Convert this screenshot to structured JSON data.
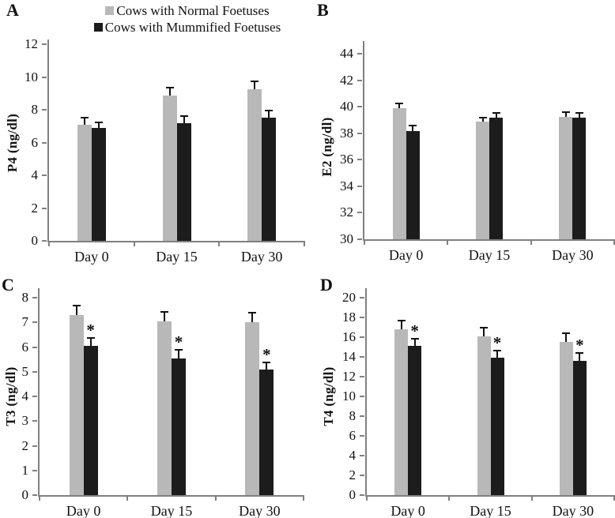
{
  "figure": {
    "sig_marker": "*",
    "colors": {
      "normal": "#b8b8b8",
      "mummified": "#1c1c1c",
      "axis": "#808080",
      "text": "#111111"
    },
    "legend": {
      "items": [
        {
          "label": "Cows with Normal Foetuses",
          "color": "#b8b8b8"
        },
        {
          "label": "Cows with Mummified Foetuses",
          "color": "#1c1c1c"
        }
      ]
    }
  },
  "chart_data": [
    {
      "panel": "A",
      "type": "bar",
      "ylabel": "P4 (ng/dl)",
      "xlabel": "",
      "categories": [
        "Day 0",
        "Day 15",
        "Day 30"
      ],
      "ylim": [
        0,
        12
      ],
      "yticks": [
        0,
        2,
        4,
        6,
        8,
        10,
        12
      ],
      "grid": false,
      "legend_position": "top",
      "series": [
        {
          "name": "Cows with Normal Foetuses",
          "color": "#b8b8b8",
          "values": [
            7.1,
            8.85,
            9.25
          ],
          "errors": [
            0.35,
            0.45,
            0.45
          ],
          "sig": [
            false,
            false,
            false
          ]
        },
        {
          "name": "Cows with Mummified Foetuses",
          "color": "#1c1c1c",
          "values": [
            6.9,
            7.2,
            7.5
          ],
          "errors": [
            0.3,
            0.35,
            0.4
          ],
          "sig": [
            false,
            false,
            false
          ]
        }
      ]
    },
    {
      "panel": "B",
      "type": "bar",
      "ylabel": "E2 (ng/dl)",
      "xlabel": "",
      "categories": [
        "Day 0",
        "Day 15",
        "Day 30"
      ],
      "ylim": [
        30,
        44
      ],
      "yticks": [
        30,
        32,
        34,
        36,
        38,
        40,
        42,
        44
      ],
      "grid": false,
      "legend_position": "none",
      "series": [
        {
          "name": "Cows with Normal Foetuses",
          "color": "#b8b8b8",
          "values": [
            39.9,
            38.85,
            39.25
          ],
          "errors": [
            0.3,
            0.25,
            0.3
          ],
          "sig": [
            false,
            false,
            false
          ]
        },
        {
          "name": "Cows with Mummified Foetuses",
          "color": "#1c1c1c",
          "values": [
            38.15,
            39.2,
            39.15
          ],
          "errors": [
            0.35,
            0.3,
            0.3
          ],
          "sig": [
            false,
            false,
            false
          ]
        }
      ]
    },
    {
      "panel": "C",
      "type": "bar",
      "ylabel": "T3 (ng/dl)",
      "xlabel": "",
      "categories": [
        "Day 0",
        "Day 15",
        "Day 30"
      ],
      "ylim": [
        0,
        8
      ],
      "yticks": [
        0,
        1,
        2,
        3,
        4,
        5,
        6,
        7,
        8
      ],
      "grid": false,
      "legend_position": "none",
      "series": [
        {
          "name": "Cows with Normal Foetuses",
          "color": "#b8b8b8",
          "values": [
            7.3,
            7.05,
            7.0
          ],
          "errors": [
            0.35,
            0.35,
            0.35
          ],
          "sig": [
            false,
            false,
            false
          ]
        },
        {
          "name": "Cows with Mummified Foetuses",
          "color": "#1c1c1c",
          "values": [
            6.05,
            5.55,
            5.1
          ],
          "errors": [
            0.3,
            0.3,
            0.25
          ],
          "sig": [
            true,
            true,
            true
          ]
        }
      ]
    },
    {
      "panel": "D",
      "type": "bar",
      "ylabel": "T4 (ng/dl)",
      "xlabel": "",
      "categories": [
        "Day 0",
        "Day 15",
        "Day 30"
      ],
      "ylim": [
        0,
        20
      ],
      "yticks": [
        0,
        2,
        4,
        6,
        8,
        10,
        12,
        14,
        16,
        18,
        20
      ],
      "grid": false,
      "legend_position": "none",
      "series": [
        {
          "name": "Cows with Normal Foetuses",
          "color": "#b8b8b8",
          "values": [
            16.8,
            16.1,
            15.5
          ],
          "errors": [
            0.8,
            0.8,
            0.8
          ],
          "sig": [
            false,
            false,
            false
          ]
        },
        {
          "name": "Cows with Mummified Foetuses",
          "color": "#1c1c1c",
          "values": [
            15.1,
            13.9,
            13.6
          ],
          "errors": [
            0.7,
            0.7,
            0.7
          ],
          "sig": [
            true,
            true,
            true
          ]
        }
      ]
    }
  ]
}
